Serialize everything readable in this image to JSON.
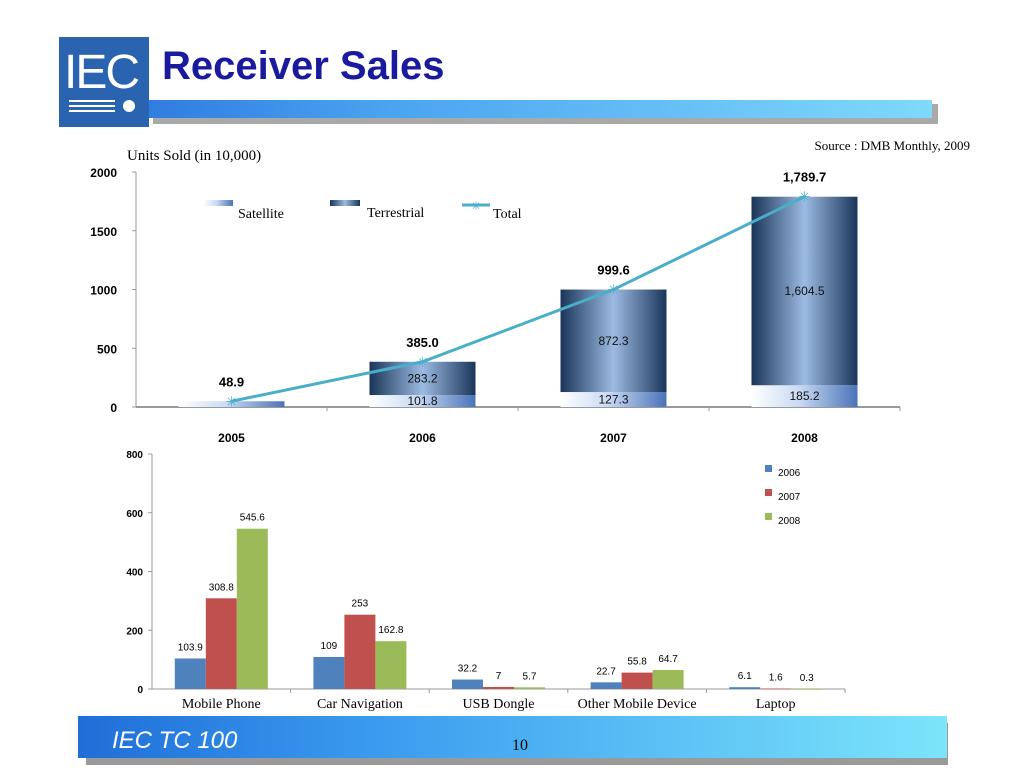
{
  "header": {
    "logo_text": "IEC",
    "title": "Receiver Sales"
  },
  "source_note": "Source : DMB Monthly, 2009",
  "footer": {
    "label": "IEC TC 100",
    "page_number": "10"
  },
  "colors": {
    "brand_blue": "#2a63b0",
    "title_navy": "#1a1a9e",
    "satellite": "#8fb3e6",
    "terrestrial": "#1f3d6b",
    "total_line": "#49aec9",
    "series_2006": "#4f81bd",
    "series_2007": "#c0504d",
    "series_2008": "#9bbb59"
  },
  "chart_data": [
    {
      "type": "bar",
      "stacked": true,
      "ylabel": "Units Sold (in 10,000)",
      "categories": [
        "2005",
        "2006",
        "2007",
        "2008"
      ],
      "ylim": [
        0,
        2000
      ],
      "yticks": [
        0,
        500,
        1000,
        1500,
        2000
      ],
      "series": [
        {
          "name": "Satellite",
          "values": [
            48.9,
            101.8,
            127.3,
            185.2
          ],
          "labels": [
            "",
            "101.8",
            "127.3",
            "185.2"
          ]
        },
        {
          "name": "Terrestrial",
          "values": [
            0,
            283.2,
            872.3,
            1604.5
          ],
          "labels": [
            "",
            "283.2",
            "872.3",
            "1,604.5"
          ]
        }
      ],
      "line_series": {
        "name": "Total",
        "values": [
          48.9,
          385.0,
          999.6,
          1789.7
        ],
        "labels": [
          "48.9",
          "385.0",
          "999.6",
          "1,789.7"
        ]
      },
      "legend": [
        "Satellite",
        "Terrestrial",
        "Total"
      ],
      "legend_position": "top-left"
    },
    {
      "type": "bar",
      "categories": [
        "Mobile Phone",
        "Car Navigation",
        "USB Dongle",
        "Other Mobile Device",
        "Laptop"
      ],
      "ylim": [
        0,
        800
      ],
      "yticks": [
        0,
        200,
        400,
        600,
        800
      ],
      "series": [
        {
          "name": "2006",
          "values": [
            103.9,
            109,
            32.2,
            22.7,
            6.1
          ]
        },
        {
          "name": "2007",
          "values": [
            308.8,
            253,
            7,
            55.8,
            1.6
          ]
        },
        {
          "name": "2008",
          "values": [
            545.6,
            162.8,
            5.7,
            64.7,
            0.3
          ]
        }
      ],
      "legend_position": "right"
    }
  ]
}
